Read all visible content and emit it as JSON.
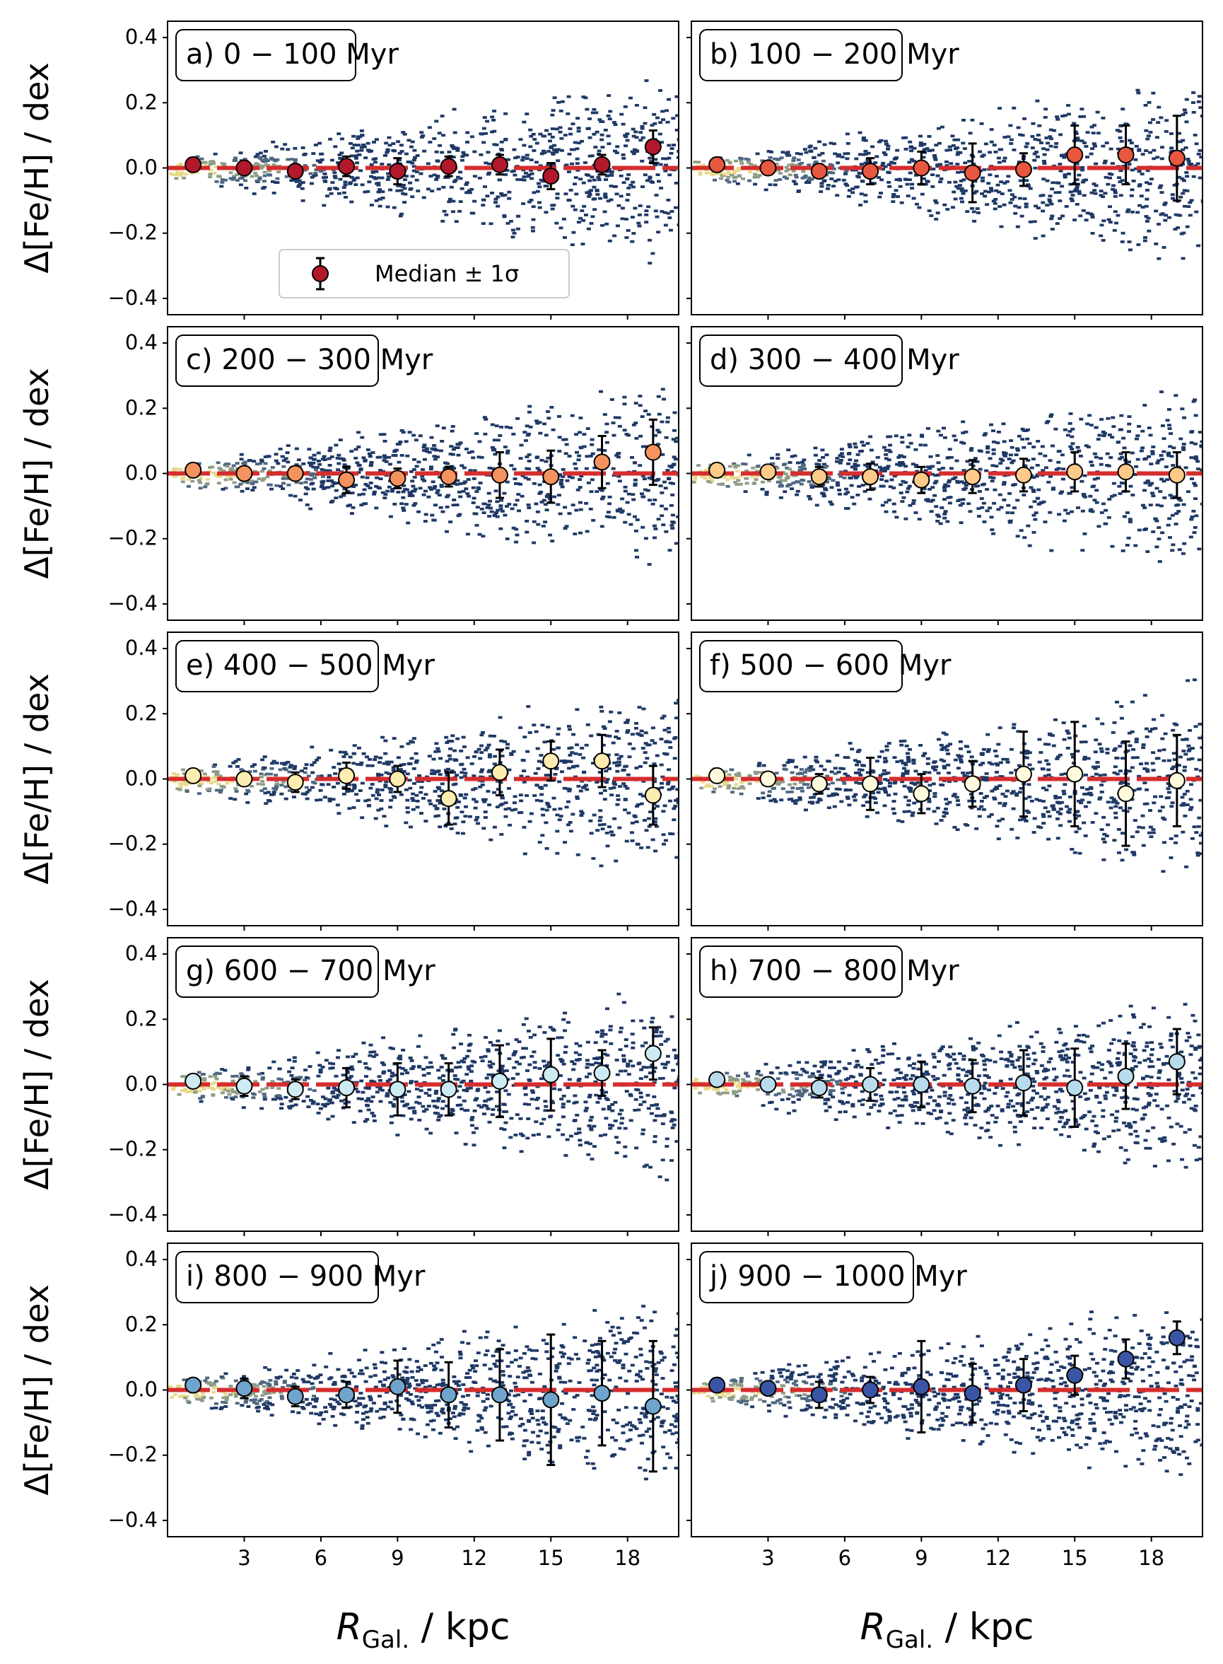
{
  "figure": {
    "ylabel": "Δ[Fe/H] / dex",
    "xlabel_main": "R",
    "xlabel_sub": "Gal.",
    "xlabel_unit": " / kpc",
    "legend_label": "Median ± 1σ"
  },
  "colors": {
    "zero_line": "#d62d2d",
    "marker_edge": "#000000",
    "heatmap_low": "#1f3966",
    "heatmap_high": "#e8d98a"
  },
  "chart_data": [
    {
      "type": "scatter",
      "title": "a) 0 − 100 Myr",
      "marker_color": "#b2182b",
      "xlim": [
        0,
        20
      ],
      "ylim": [
        -0.45,
        0.45
      ],
      "x": [
        1,
        3,
        5,
        7,
        9,
        11,
        13,
        15,
        17,
        19
      ],
      "median": [
        0.01,
        0.0,
        -0.01,
        0.005,
        -0.01,
        0.005,
        0.01,
        -0.025,
        0.01,
        0.065
      ],
      "sigma": [
        0.02,
        0.02,
        0.02,
        0.03,
        0.04,
        0.03,
        0.03,
        0.04,
        0.03,
        0.05
      ]
    },
    {
      "type": "scatter",
      "title": "b) 100 − 200 Myr",
      "marker_color": "#e8573f",
      "xlim": [
        0,
        20
      ],
      "ylim": [
        -0.45,
        0.45
      ],
      "x": [
        1,
        3,
        5,
        7,
        9,
        11,
        13,
        15,
        17,
        19
      ],
      "median": [
        0.01,
        0.0,
        -0.01,
        -0.01,
        0.0,
        -0.015,
        -0.005,
        0.04,
        0.04,
        0.03
      ],
      "sigma": [
        0.02,
        0.02,
        0.02,
        0.04,
        0.05,
        0.09,
        0.05,
        0.09,
        0.09,
        0.13
      ]
    },
    {
      "type": "scatter",
      "title": "c) 200 − 300 Myr",
      "marker_color": "#f5935f",
      "xlim": [
        0,
        20
      ],
      "ylim": [
        -0.45,
        0.45
      ],
      "x": [
        1,
        3,
        5,
        7,
        9,
        11,
        13,
        15,
        17,
        19
      ],
      "median": [
        0.01,
        0.0,
        0.0,
        -0.02,
        -0.015,
        -0.01,
        -0.005,
        -0.01,
        0.035,
        0.065
      ],
      "sigma": [
        0.02,
        0.02,
        0.02,
        0.04,
        0.03,
        0.03,
        0.07,
        0.08,
        0.08,
        0.1
      ]
    },
    {
      "type": "scatter",
      "title": "d) 300 − 400 Myr",
      "marker_color": "#fdca8a",
      "xlim": [
        0,
        20
      ],
      "ylim": [
        -0.45,
        0.45
      ],
      "x": [
        1,
        3,
        5,
        7,
        9,
        11,
        13,
        15,
        17,
        19
      ],
      "median": [
        0.01,
        0.005,
        -0.01,
        -0.01,
        -0.02,
        -0.01,
        -0.005,
        0.005,
        0.005,
        -0.005
      ],
      "sigma": [
        0.02,
        0.02,
        0.03,
        0.04,
        0.04,
        0.05,
        0.05,
        0.06,
        0.06,
        0.07
      ]
    },
    {
      "type": "scatter",
      "title": "e) 400 − 500 Myr",
      "marker_color": "#feedb0",
      "xlim": [
        0,
        20
      ],
      "ylim": [
        -0.45,
        0.45
      ],
      "x": [
        1,
        3,
        5,
        7,
        9,
        11,
        13,
        15,
        17,
        19
      ],
      "median": [
        0.01,
        0.0,
        -0.01,
        0.01,
        0.0,
        -0.06,
        0.02,
        0.055,
        0.055,
        -0.05
      ],
      "sigma": [
        0.02,
        0.02,
        0.03,
        0.04,
        0.04,
        0.08,
        0.07,
        0.06,
        0.08,
        0.09
      ]
    },
    {
      "type": "scatter",
      "title": "f) 500 − 600 Myr",
      "marker_color": "#fffbdc",
      "xlim": [
        0,
        20
      ],
      "ylim": [
        -0.45,
        0.45
      ],
      "x": [
        1,
        3,
        5,
        7,
        9,
        11,
        13,
        15,
        17,
        19
      ],
      "median": [
        0.01,
        0.0,
        -0.015,
        -0.015,
        -0.045,
        -0.015,
        0.015,
        0.015,
        -0.045,
        -0.005
      ],
      "sigma": [
        0.02,
        0.02,
        0.03,
        0.08,
        0.06,
        0.07,
        0.13,
        0.16,
        0.16,
        0.14
      ]
    },
    {
      "type": "scatter",
      "title": "g) 600 − 700 Myr",
      "marker_color": "#cdebf3",
      "xlim": [
        0,
        20
      ],
      "ylim": [
        -0.45,
        0.45
      ],
      "x": [
        1,
        3,
        5,
        7,
        9,
        11,
        13,
        15,
        17,
        19
      ],
      "median": [
        0.01,
        -0.005,
        -0.015,
        -0.01,
        -0.015,
        -0.015,
        0.01,
        0.03,
        0.035,
        0.095
      ],
      "sigma": [
        0.02,
        0.03,
        0.03,
        0.06,
        0.08,
        0.08,
        0.11,
        0.11,
        0.07,
        0.08
      ]
    },
    {
      "type": "scatter",
      "title": "h) 700 − 800 Myr",
      "marker_color": "#b8dcec",
      "xlim": [
        0,
        20
      ],
      "ylim": [
        -0.45,
        0.45
      ],
      "x": [
        1,
        3,
        5,
        7,
        9,
        11,
        13,
        15,
        17,
        19
      ],
      "median": [
        0.015,
        0.0,
        -0.01,
        0.0,
        0.0,
        -0.005,
        0.005,
        -0.01,
        0.025,
        0.07
      ],
      "sigma": [
        0.02,
        0.02,
        0.03,
        0.05,
        0.07,
        0.08,
        0.1,
        0.12,
        0.1,
        0.1
      ]
    },
    {
      "type": "scatter",
      "title": "i) 800 − 900 Myr",
      "marker_color": "#6fa5cc",
      "xlim": [
        0,
        20
      ],
      "ylim": [
        -0.45,
        0.45
      ],
      "x": [
        1,
        3,
        5,
        7,
        9,
        11,
        13,
        15,
        17,
        19
      ],
      "median": [
        0.015,
        0.005,
        -0.02,
        -0.015,
        0.01,
        -0.015,
        -0.015,
        -0.03,
        -0.01,
        -0.05
      ],
      "sigma": [
        0.02,
        0.03,
        0.03,
        0.04,
        0.08,
        0.1,
        0.14,
        0.2,
        0.16,
        0.2
      ]
    },
    {
      "type": "scatter",
      "title": "j) 900 − 1000 Myr",
      "marker_color": "#3a55a5",
      "xlim": [
        0,
        20
      ],
      "ylim": [
        -0.45,
        0.45
      ],
      "x": [
        1,
        3,
        5,
        7,
        9,
        11,
        13,
        15,
        17,
        19
      ],
      "median": [
        0.015,
        0.005,
        -0.015,
        0.0,
        0.01,
        -0.01,
        0.015,
        0.045,
        0.095,
        0.16
      ],
      "sigma": [
        0.02,
        0.02,
        0.04,
        0.04,
        0.14,
        0.09,
        0.08,
        0.06,
        0.06,
        0.05
      ]
    }
  ],
  "axes": {
    "xticks": [
      3,
      6,
      9,
      12,
      15,
      18
    ],
    "yticks": [
      -0.4,
      -0.2,
      0.0,
      0.2,
      0.4
    ],
    "ytick_labels": [
      "−0.4",
      "−0.2",
      "0.0",
      "0.2",
      "0.4"
    ]
  }
}
